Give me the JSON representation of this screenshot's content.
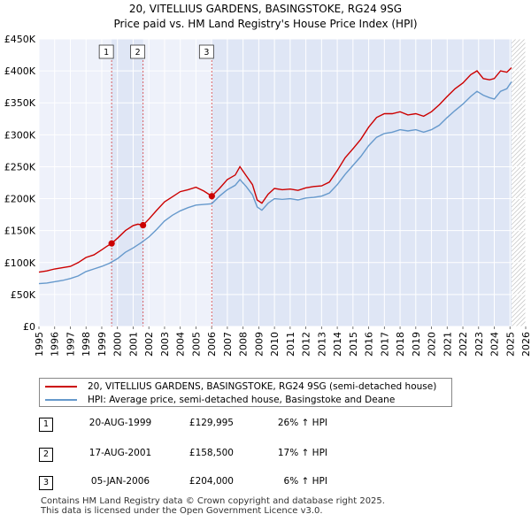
{
  "chart_data": {
    "type": "line",
    "title": "20, VITELLIUS GARDENS, BASINGSTOKE, RG24 9SG",
    "subtitle": "Price paid vs. HM Land Registry's House Price Index (HPI)",
    "xlabel": "",
    "ylabel": "",
    "xlim": [
      1995,
      2026
    ],
    "ylim": [
      0,
      450000
    ],
    "ytick_labels": [
      "£0",
      "£50K",
      "£100K",
      "£150K",
      "£200K",
      "£250K",
      "£300K",
      "£350K",
      "£400K",
      "£450K"
    ],
    "ytick_values": [
      0,
      50000,
      100000,
      150000,
      200000,
      250000,
      300000,
      350000,
      400000,
      450000
    ],
    "xtick_labels": [
      "1995",
      "1996",
      "1997",
      "1998",
      "1999",
      "2000",
      "2001",
      "2002",
      "2003",
      "2004",
      "2005",
      "2006",
      "2007",
      "2008",
      "2009",
      "2010",
      "2011",
      "2012",
      "2013",
      "2014",
      "2015",
      "2016",
      "2017",
      "2018",
      "2019",
      "2020",
      "2021",
      "2022",
      "2023",
      "2024",
      "2025",
      "2026"
    ],
    "xtick_values": [
      1995,
      1996,
      1997,
      1998,
      1999,
      2000,
      2001,
      2002,
      2003,
      2004,
      2005,
      2006,
      2007,
      2008,
      2009,
      2010,
      2011,
      2012,
      2013,
      2014,
      2015,
      2016,
      2017,
      2018,
      2019,
      2020,
      2021,
      2022,
      2023,
      2024,
      2025,
      2026
    ],
    "grid": true,
    "series": [
      {
        "name": "20, VITELLIUS GARDENS, BASINGSTOKE, RG24 9SG (semi-detached house)",
        "color": "#cc0000",
        "x": [
          1995.0,
          1995.5,
          1996.0,
          1996.5,
          1997.0,
          1997.5,
          1998.0,
          1998.5,
          1999.0,
          1999.3,
          1999.63,
          2000.0,
          2000.5,
          2001.0,
          2001.3,
          2001.63,
          2002.0,
          2002.5,
          2003.0,
          2003.5,
          2004.0,
          2004.5,
          2005.0,
          2005.5,
          2006.01,
          2006.5,
          2007.0,
          2007.5,
          2007.8,
          2008.2,
          2008.6,
          2008.9,
          2009.2,
          2009.6,
          2010.0,
          2010.5,
          2011.0,
          2011.5,
          2012.0,
          2012.5,
          2013.0,
          2013.5,
          2014.0,
          2014.5,
          2015.0,
          2015.5,
          2016.0,
          2016.5,
          2017.0,
          2017.5,
          2018.0,
          2018.5,
          2019.0,
          2019.5,
          2020.0,
          2020.5,
          2021.0,
          2021.5,
          2022.0,
          2022.5,
          2022.9,
          2023.3,
          2023.7,
          2024.0,
          2024.4,
          2024.8,
          2025.1
        ],
        "values": [
          85000,
          87000,
          90000,
          92000,
          94000,
          100000,
          108000,
          112000,
          120000,
          125000,
          129995,
          138000,
          150000,
          158000,
          160000,
          158500,
          168000,
          182000,
          195000,
          203000,
          211000,
          214000,
          218000,
          212000,
          204000,
          216000,
          230000,
          237000,
          250000,
          236000,
          222000,
          198000,
          193000,
          207000,
          216000,
          214000,
          215000,
          213000,
          217000,
          219000,
          220000,
          226000,
          244000,
          264000,
          278000,
          293000,
          312000,
          327000,
          333000,
          333000,
          336000,
          331000,
          333000,
          329000,
          336000,
          347000,
          360000,
          372000,
          381000,
          394000,
          400000,
          388000,
          386000,
          388000,
          400000,
          398000,
          405000
        ]
      },
      {
        "name": "HPI: Average price, semi-detached house, Basingstoke and Deane",
        "color": "#6699cc",
        "x": [
          1995.0,
          1995.5,
          1996.0,
          1996.5,
          1997.0,
          1997.5,
          1998.0,
          1998.5,
          1999.0,
          1999.5,
          2000.0,
          2000.5,
          2001.0,
          2001.5,
          2002.0,
          2002.5,
          2003.0,
          2003.5,
          2004.0,
          2004.5,
          2005.0,
          2005.5,
          2006.0,
          2006.5,
          2007.0,
          2007.5,
          2007.8,
          2008.2,
          2008.6,
          2008.9,
          2009.2,
          2009.6,
          2010.0,
          2010.5,
          2011.0,
          2011.5,
          2012.0,
          2012.5,
          2013.0,
          2013.5,
          2014.0,
          2014.5,
          2015.0,
          2015.5,
          2016.0,
          2016.5,
          2017.0,
          2017.5,
          2018.0,
          2018.5,
          2019.0,
          2019.5,
          2020.0,
          2020.5,
          2021.0,
          2021.5,
          2022.0,
          2022.5,
          2022.9,
          2023.3,
          2023.7,
          2024.0,
          2024.4,
          2024.8,
          2025.1
        ],
        "values": [
          67000,
          68000,
          70000,
          72000,
          75000,
          79000,
          86000,
          90000,
          94000,
          99000,
          106000,
          116000,
          123000,
          131000,
          140000,
          152000,
          165000,
          174000,
          181000,
          186000,
          190000,
          191000,
          192000,
          204000,
          214000,
          221000,
          230000,
          219000,
          206000,
          187000,
          182000,
          193000,
          200000,
          199000,
          200000,
          198000,
          201000,
          202000,
          204000,
          209000,
          222000,
          238000,
          252000,
          266000,
          283000,
          296000,
          302000,
          304000,
          308000,
          306000,
          308000,
          304000,
          308000,
          315000,
          327000,
          338000,
          348000,
          360000,
          368000,
          362000,
          358000,
          356000,
          368000,
          372000,
          383000
        ]
      }
    ],
    "annotations": [
      {
        "label": "1",
        "x": 1999.63,
        "value": 129995
      },
      {
        "label": "2",
        "x": 2001.63,
        "value": 158500
      },
      {
        "label": "3",
        "x": 2006.01,
        "value": 204000
      }
    ],
    "shaded_spans": [
      [
        1999.63,
        2001.63
      ],
      [
        2006.01,
        2026
      ]
    ],
    "hatched_from": 2025.1
  },
  "legend": {
    "property_label": "20, VITELLIUS GARDENS, BASINGSTOKE, RG24 9SG (semi-detached house)",
    "hpi_label": "HPI: Average price, semi-detached house, Basingstoke and Deane"
  },
  "sales": [
    {
      "num": "1",
      "date": "20-AUG-1999",
      "price": "£129,995",
      "hpi": "26% ↑ HPI"
    },
    {
      "num": "2",
      "date": "17-AUG-2001",
      "price": "£158,500",
      "hpi": "17% ↑ HPI"
    },
    {
      "num": "3",
      "date": "05-JAN-2006",
      "price": "£204,000",
      "hpi": "6% ↑ HPI"
    }
  ],
  "footer": {
    "line1": "Contains HM Land Registry data © Crown copyright and database right 2025.",
    "line2": "This data is licensed under the Open Government Licence v3.0."
  },
  "colors": {
    "property": "#cc0000",
    "hpi": "#6699cc",
    "plot_bg": "#eef1fa",
    "shade": "#dfe6f5"
  }
}
